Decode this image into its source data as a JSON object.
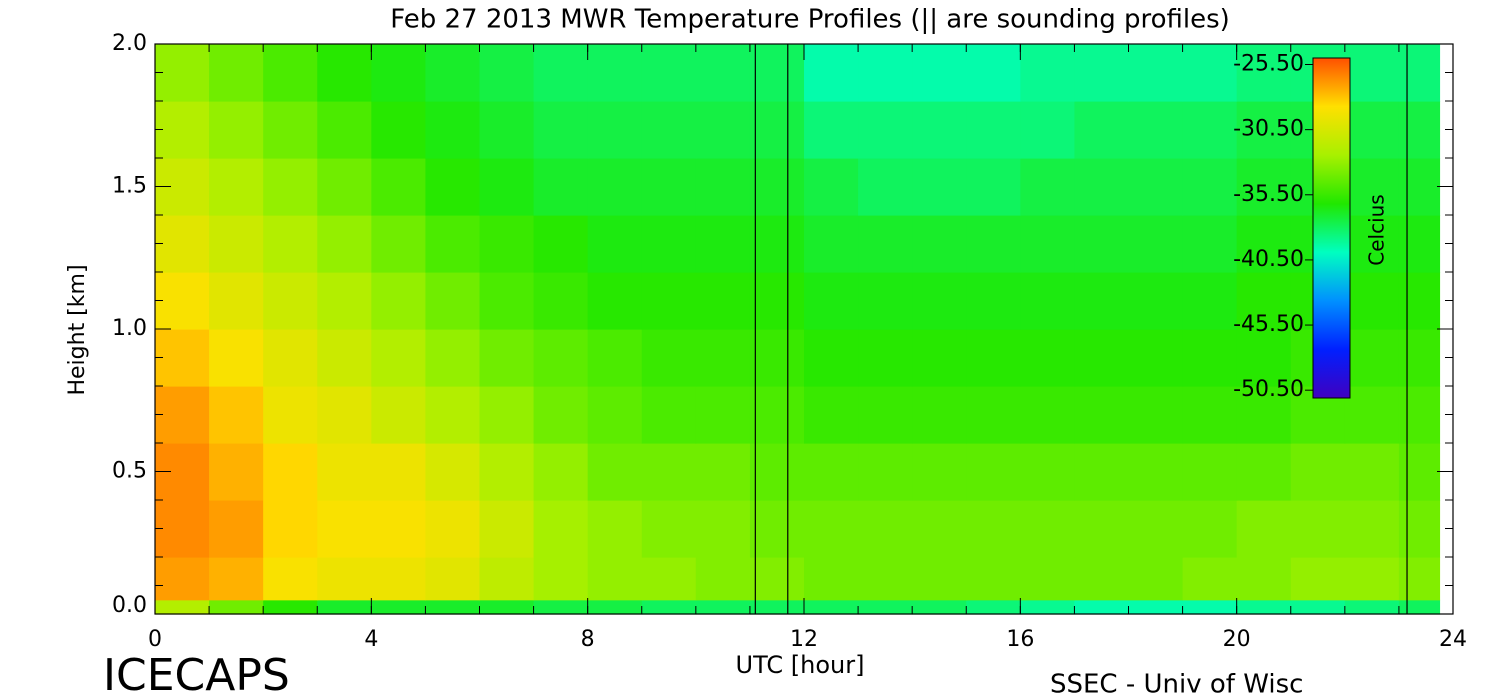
{
  "chart_data": {
    "type": "heatmap",
    "title": "Feb 27 2013 MWR Temperature Profiles (|| are sounding profiles)",
    "x_label": "UTC [hour]",
    "y_label": "Height [km]",
    "footer_left": "ICECAPS",
    "footer_right": "SSEC - Univ of Wisc",
    "xlim": [
      0,
      24
    ],
    "ylim": [
      0,
      2
    ],
    "xticks": [
      0,
      4,
      8,
      12,
      16,
      20,
      24
    ],
    "yticks": [
      {
        "value": 0,
        "label": "0.0"
      },
      {
        "value": 0.5,
        "label": "0.5"
      },
      {
        "value": 1,
        "label": "1.0"
      },
      {
        "value": 1.5,
        "label": "1.5"
      },
      {
        "value": 2,
        "label": "2.0"
      }
    ],
    "x_minor_step": 1,
    "y_minor_step": 0.1,
    "x_edges": [
      0,
      1,
      2,
      3,
      4,
      5,
      6,
      7,
      8,
      9,
      10,
      11,
      12,
      13,
      14,
      15,
      16,
      17,
      18,
      19,
      20,
      21,
      22,
      23,
      23.75
    ],
    "y_edges": [
      0,
      0.05,
      0.2,
      0.4,
      0.6,
      0.8,
      1.0,
      1.2,
      1.4,
      1.6,
      1.8,
      2.0
    ],
    "values": [
      [
        -32,
        -34,
        -36,
        -37,
        -37,
        -37,
        -37,
        -37.5,
        -37.5,
        -38,
        -38,
        -38,
        -38,
        -38,
        -38,
        -38.5,
        -39,
        -39.5,
        -39.5,
        -39.5,
        -39,
        -39,
        -38.5,
        -38
      ],
      [
        -27,
        -27.5,
        -29,
        -29.5,
        -29.5,
        -30,
        -31.5,
        -32.5,
        -33,
        -33,
        -33.5,
        -33.5,
        -34,
        -34,
        -34,
        -34,
        -34,
        -34,
        -34,
        -33.5,
        -33.5,
        -33,
        -33,
        -33.5
      ],
      [
        -26.5,
        -27,
        -28.5,
        -29,
        -29,
        -29.5,
        -31,
        -32.5,
        -33,
        -33.5,
        -33.5,
        -34,
        -34,
        -34,
        -34,
        -34,
        -34,
        -34,
        -34,
        -34,
        -33.5,
        -33.5,
        -33.5,
        -34
      ],
      [
        -26.5,
        -27.5,
        -28.5,
        -29.5,
        -29.5,
        -30.5,
        -32,
        -33,
        -34,
        -34,
        -34,
        -34.5,
        -34.5,
        -34.5,
        -34.5,
        -34.5,
        -34.5,
        -34.5,
        -34.5,
        -34.5,
        -34.5,
        -34,
        -34,
        -34.5
      ],
      [
        -27,
        -28,
        -29.5,
        -30,
        -31,
        -32,
        -33,
        -34,
        -34.5,
        -35,
        -35,
        -35,
        -35.5,
        -35.5,
        -35.5,
        -35.5,
        -35.5,
        -35.5,
        -35.5,
        -35.5,
        -35.5,
        -35,
        -35,
        -35
      ],
      [
        -28,
        -29,
        -30,
        -31,
        -32,
        -33,
        -34,
        -34.5,
        -35,
        -35.5,
        -35.5,
        -35.5,
        -36,
        -36,
        -36,
        -36,
        -36,
        -36,
        -36,
        -36,
        -36,
        -35.5,
        -35.5,
        -35.5
      ],
      [
        -29,
        -30,
        -31,
        -32,
        -33,
        -34,
        -35,
        -35.5,
        -36,
        -36,
        -36,
        -36,
        -36.5,
        -36.5,
        -36.5,
        -36.5,
        -36.5,
        -36.5,
        -36.5,
        -36.5,
        -36,
        -36,
        -36,
        -36
      ],
      [
        -30,
        -31,
        -32,
        -33,
        -34,
        -35,
        -35.5,
        -36,
        -36.5,
        -36.5,
        -36.5,
        -36.5,
        -37,
        -37,
        -37,
        -37,
        -37,
        -37,
        -37,
        -37,
        -36.5,
        -36.5,
        -36.5,
        -36.5
      ],
      [
        -31,
        -32,
        -33,
        -34,
        -35,
        -36,
        -36.5,
        -37,
        -37,
        -37,
        -37,
        -37,
        -37.5,
        -38,
        -38,
        -38,
        -37.5,
        -37.5,
        -37.5,
        -37.5,
        -37,
        -37,
        -37,
        -37
      ],
      [
        -32,
        -33,
        -34,
        -35,
        -36,
        -36.5,
        -37,
        -37.5,
        -37.5,
        -37.5,
        -37.5,
        -37.5,
        -38.5,
        -38.5,
        -38.5,
        -38.5,
        -38.5,
        -38,
        -38,
        -38,
        -37.5,
        -37.5,
        -37.5,
        -37.5
      ],
      [
        -33,
        -34,
        -35,
        -36,
        -36.5,
        -37,
        -37.5,
        -38,
        -38,
        -38,
        -38,
        -38,
        -39.5,
        -39.5,
        -39.5,
        -39.5,
        -39,
        -39,
        -39,
        -39,
        -38.5,
        -38.5,
        -38.5,
        -38.5
      ]
    ],
    "soundings": [
      11.1,
      11.7,
      23.15
    ],
    "colorbar": {
      "label": "Celcius",
      "zlim": [
        -51.1,
        -25.0
      ],
      "colors": [
        "#4000c0",
        "#0020ff",
        "#0090ff",
        "#00ffc0",
        "#20e800",
        "#a8f000",
        "#ffe000",
        "#ff5000"
      ],
      "ticks": [
        {
          "value": -25.5,
          "label": "-25.50"
        },
        {
          "value": -30.5,
          "label": "-30.50"
        },
        {
          "value": -35.5,
          "label": "-35.50"
        },
        {
          "value": -40.5,
          "label": "-40.50"
        },
        {
          "value": -45.5,
          "label": "-45.50"
        },
        {
          "value": -50.5,
          "label": "-50.50"
        }
      ]
    }
  }
}
